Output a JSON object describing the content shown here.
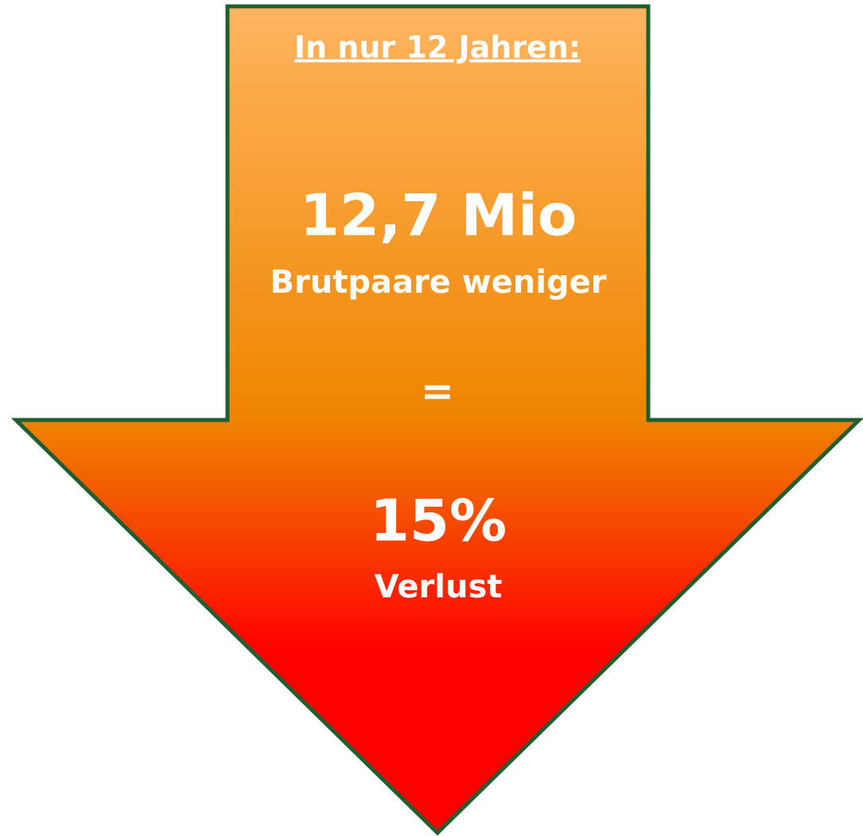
{
  "header": {
    "title": "In nur 12 Jahren:"
  },
  "body": {
    "amount": "12,7 Mio",
    "amount_caption": "Brutpaare weniger",
    "equals": "=",
    "share": "15%",
    "share_caption": "Verlust"
  }
}
